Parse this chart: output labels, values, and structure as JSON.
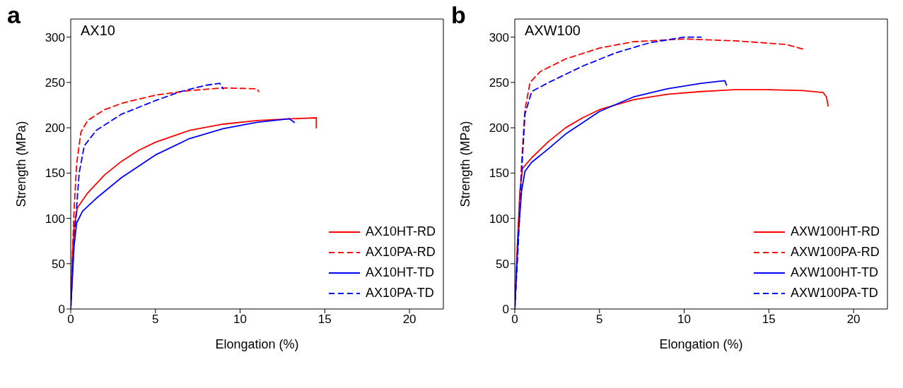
{
  "chart_data": [
    {
      "type": "line",
      "title": "AX10",
      "annotations": [
        "a"
      ],
      "xlabel": "Elongation (%)",
      "ylabel": "Strength (MPa)",
      "xlim": [
        0,
        22
      ],
      "ylim": [
        0,
        320
      ],
      "xticks": [
        0,
        5,
        10,
        15,
        20
      ],
      "yticks": [
        0,
        50,
        100,
        150,
        200,
        250,
        300
      ],
      "legend": "bottom right",
      "marker": "none",
      "series": [
        {
          "name": "AX10HT-RD",
          "color": "#ff0000",
          "line_style": "solid",
          "x": [
            0,
            0.1,
            0.2,
            0.4,
            1,
            2,
            3,
            4,
            5,
            7,
            9,
            11,
            13,
            14.5,
            14.5
          ],
          "values": [
            0,
            60,
            90,
            112,
            128,
            148,
            163,
            175,
            184,
            197,
            204,
            208,
            210,
            211,
            200
          ]
        },
        {
          "name": "AX10PA-RD",
          "color": "#ff0000",
          "line_style": "dashed",
          "x": [
            0,
            0.1,
            0.2,
            0.35,
            0.6,
            1,
            2,
            3,
            5,
            7,
            9,
            11,
            11.1
          ],
          "values": [
            0,
            60,
            110,
            160,
            195,
            208,
            220,
            227,
            236,
            241,
            244,
            243,
            240
          ]
        },
        {
          "name": "AX10HT-TD",
          "color": "#0000ff",
          "line_style": "solid",
          "x": [
            0,
            0.2,
            0.35,
            0.7,
            1.5,
            3,
            5,
            7,
            9,
            11,
            12.9,
            13.2
          ],
          "values": [
            0,
            70,
            95,
            108,
            122,
            145,
            170,
            188,
            199,
            206,
            210,
            206
          ]
        },
        {
          "name": "AX10PA-TD",
          "color": "#0000ff",
          "line_style": "dashed",
          "x": [
            0,
            0.15,
            0.3,
            0.5,
            0.8,
            1.5,
            3,
            5,
            6.5,
            8,
            8.8,
            9
          ],
          "values": [
            0,
            60,
            100,
            150,
            180,
            197,
            215,
            230,
            240,
            247,
            249,
            243
          ]
        }
      ]
    },
    {
      "type": "line",
      "title": "AXW100",
      "annotations": [
        "b"
      ],
      "xlabel": "Elongation (%)",
      "ylabel": "Strength (MPa)",
      "xlim": [
        0,
        22
      ],
      "ylim": [
        0,
        320
      ],
      "xticks": [
        0,
        5,
        10,
        15,
        20
      ],
      "yticks": [
        0,
        50,
        100,
        150,
        200,
        250,
        300
      ],
      "legend": "bottom right",
      "marker": "none",
      "series": [
        {
          "name": "AXW100HT-RD",
          "color": "#ff0000",
          "line_style": "solid",
          "x": [
            0,
            0.15,
            0.3,
            0.45,
            1,
            2,
            3,
            4,
            5,
            7,
            9,
            11,
            13,
            15,
            17,
            18.2,
            18.4,
            18.5
          ],
          "values": [
            0,
            70,
            130,
            155,
            167,
            185,
            200,
            211,
            220,
            231,
            237,
            240,
            242,
            242,
            241,
            239,
            234,
            224
          ]
        },
        {
          "name": "AXW100PA-RD",
          "color": "#ff0000",
          "line_style": "dashed",
          "x": [
            0,
            0.2,
            0.4,
            0.6,
            0.9,
            1.5,
            3,
            5,
            7,
            10,
            13,
            16,
            17
          ],
          "values": [
            0,
            80,
            160,
            220,
            250,
            262,
            276,
            288,
            295,
            298,
            296,
            292,
            287
          ]
        },
        {
          "name": "AXW100HT-TD",
          "color": "#0000ff",
          "line_style": "solid",
          "x": [
            0,
            0.2,
            0.4,
            0.6,
            1,
            2,
            3,
            5,
            7,
            9,
            11,
            12.4,
            12.5
          ],
          "values": [
            0,
            80,
            130,
            152,
            162,
            177,
            193,
            218,
            234,
            243,
            249,
            252,
            247
          ]
        },
        {
          "name": "AXW100PA-TD",
          "color": "#0000ff",
          "line_style": "dashed",
          "x": [
            0,
            0.2,
            0.4,
            0.6,
            1,
            2,
            4,
            6,
            8,
            10,
            11
          ],
          "values": [
            0,
            70,
            150,
            215,
            240,
            250,
            268,
            283,
            294,
            300,
            300
          ]
        }
      ]
    }
  ]
}
